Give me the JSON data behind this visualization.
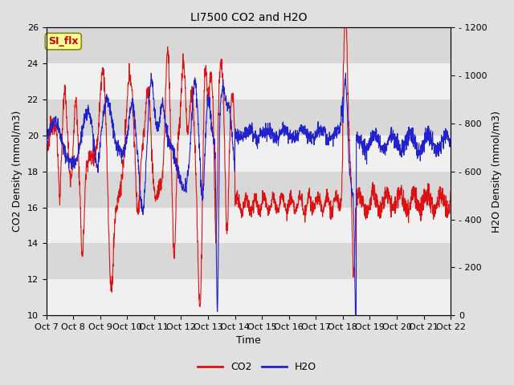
{
  "title": "LI7500 CO2 and H2O",
  "xlabel": "Time",
  "ylabel_left": "CO2 Density (mmol/m3)",
  "ylabel_right": "H2O Density (mmol/m3)",
  "ylim_left": [
    10,
    26
  ],
  "ylim_right": [
    0,
    1200
  ],
  "yticks_left": [
    10,
    12,
    14,
    16,
    18,
    20,
    22,
    24,
    26
  ],
  "yticks_right": [
    0,
    200,
    400,
    600,
    800,
    1000,
    1200
  ],
  "xtick_labels": [
    "Oct 7",
    "Oct 8",
    "Oct 9",
    "Oct 10",
    "Oct 11",
    "Oct 12",
    "Oct 13",
    "Oct 14",
    "Oct 15",
    "Oct 16",
    "Oct 17",
    "Oct 18",
    "Oct 19",
    "Oct 20",
    "Oct 21",
    "Oct 22"
  ],
  "co2_color": "#dd1111",
  "h2o_color": "#2222cc",
  "background_color": "#e0e0e0",
  "plot_bg_color": "#ebebeb",
  "band_color_dark": "#d8d8d8",
  "band_color_light": "#f0f0f0",
  "annotation_text": "SI_flx",
  "annotation_color": "#cc0000",
  "annotation_bg": "#ffff99",
  "annotation_edge": "#888800",
  "legend_co2": "CO2",
  "legend_h2o": "H2O",
  "title_fontsize": 10,
  "axis_label_fontsize": 9,
  "tick_fontsize": 8,
  "linewidth": 0.8
}
